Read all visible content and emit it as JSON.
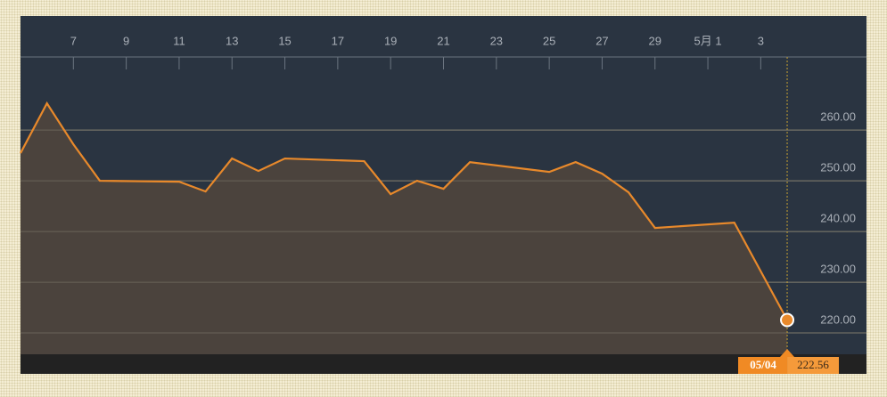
{
  "chart_data": {
    "type": "area",
    "x": [
      "04/05",
      "04/06",
      "04/07",
      "04/08",
      "04/11",
      "04/12",
      "04/13",
      "04/14",
      "04/15",
      "04/18",
      "04/19",
      "04/20",
      "04/21",
      "04/22",
      "04/25",
      "04/26",
      "04/27",
      "04/28",
      "04/29",
      "05/02",
      "05/04"
    ],
    "values": [
      255.44,
      265.26,
      257.19,
      250.0,
      249.82,
      247.89,
      254.39,
      251.93,
      254.39,
      253.86,
      247.37,
      250.0,
      248.42,
      253.68,
      251.75,
      253.68,
      251.4,
      247.72,
      240.7,
      241.75,
      222.56
    ],
    "color": "#e8892b",
    "xlim": [
      "04/05",
      "05/07"
    ],
    "xticks": [
      {
        "value": "04/07",
        "label": "7"
      },
      {
        "value": "04/09",
        "label": "9"
      },
      {
        "value": "04/11",
        "label": "11"
      },
      {
        "value": "04/13",
        "label": "13"
      },
      {
        "value": "04/15",
        "label": "15"
      },
      {
        "value": "04/17",
        "label": "17"
      },
      {
        "value": "04/19",
        "label": "19"
      },
      {
        "value": "04/21",
        "label": "21"
      },
      {
        "value": "04/23",
        "label": "23"
      },
      {
        "value": "04/25",
        "label": "25"
      },
      {
        "value": "04/27",
        "label": "27"
      },
      {
        "value": "04/29",
        "label": "29"
      },
      {
        "value": "05/01",
        "label": "5月 1"
      },
      {
        "value": "05/03",
        "label": "3"
      }
    ],
    "ylim": [
      215.8,
      274.4
    ],
    "yticks": [
      {
        "value": 220,
        "label": "220.00"
      },
      {
        "value": 230,
        "label": "230.00"
      },
      {
        "value": 240,
        "label": "240.00"
      },
      {
        "value": 250,
        "label": "250.00"
      },
      {
        "value": 260,
        "label": "260.00"
      }
    ],
    "grid": true
  }
}
